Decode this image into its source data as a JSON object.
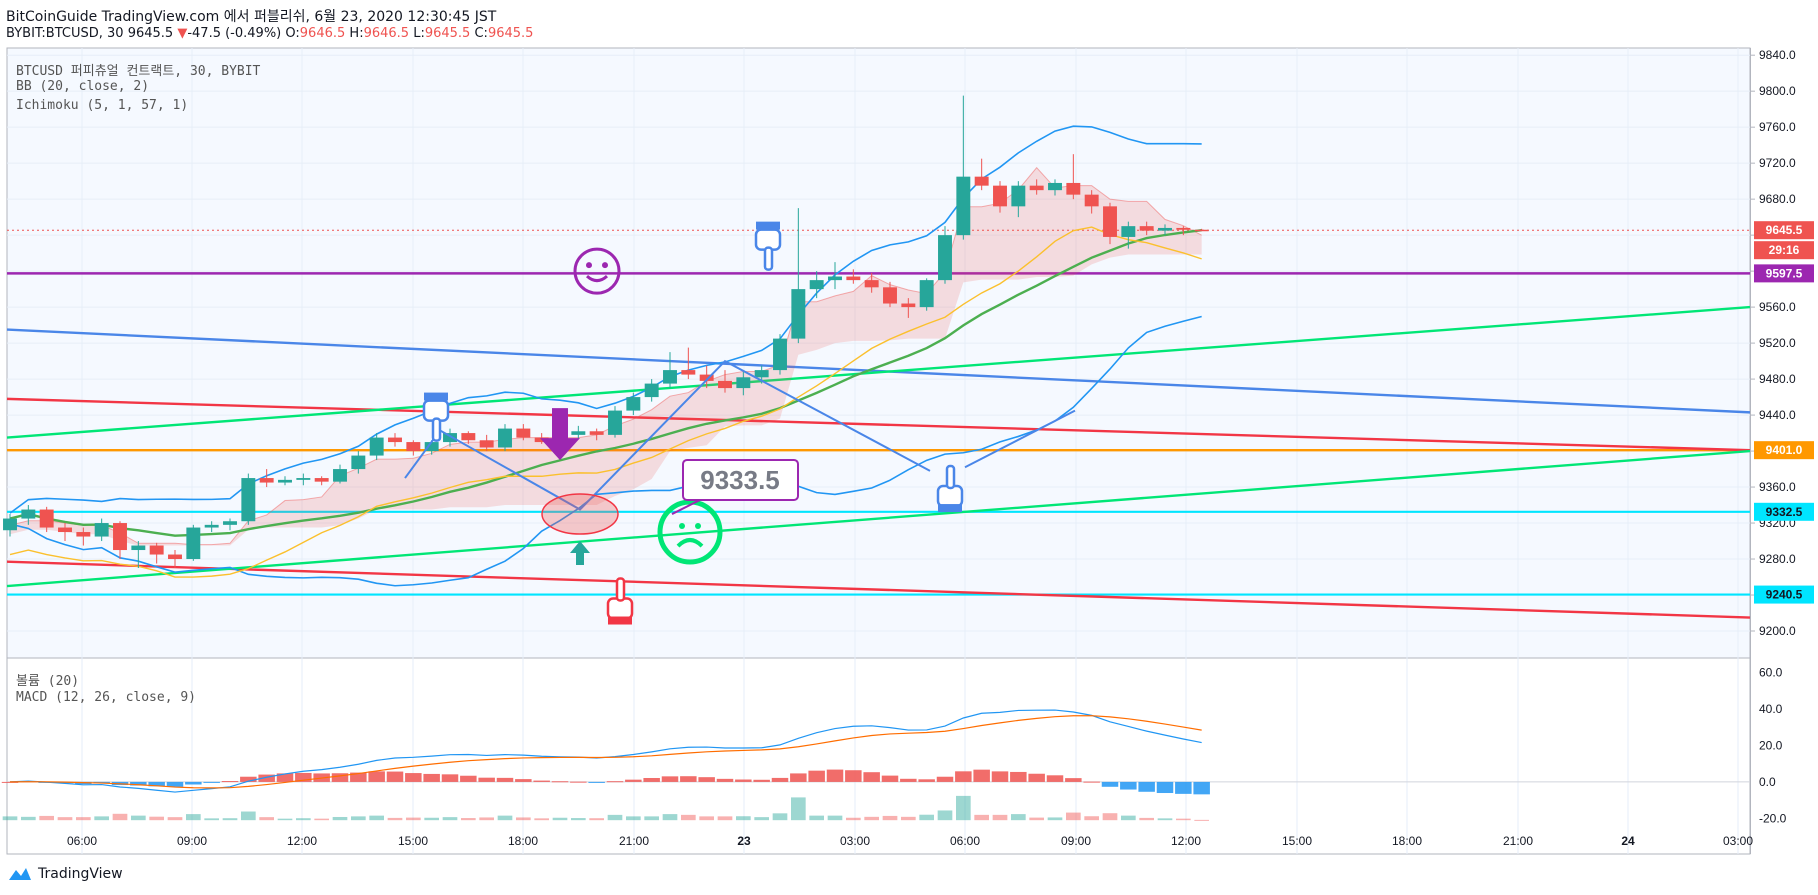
{
  "header": {
    "line1": "BitCoinGuide TradingView.com 에서 퍼블리쉬, 6월 23, 2020 12:30:45 JST",
    "symbol": "BYBIT:BTCUSD, 30",
    "last": "9645.5",
    "change": "-47.5 (-0.49%)",
    "o_label": "O:",
    "o": "9646.5",
    "h_label": "H:",
    "h": "9646.5",
    "l_label": "L:",
    "l": "9645.5",
    "c_label": "C:",
    "c": "9645.5"
  },
  "legends": {
    "main": "BTCUSD 퍼피츄얼 컨트랙트, 30, BYBIT",
    "bb": "BB (20, close, 2)",
    "ichimoku": "Ichimoku (5, 1, 57, 1)",
    "volume": "볼륨 (20)",
    "macd": "MACD (12, 26, close, 9)"
  },
  "footer": {
    "brand": "TradingView"
  },
  "annotations": {
    "callout": "9333.5"
  },
  "price_labels": {
    "current": "9645.5",
    "countdown": "29:16",
    "purple": "9597.5",
    "orange": "9401.0",
    "cyan1": "9332.5",
    "cyan2": "9240.5"
  },
  "colors": {
    "up": "#26a69a",
    "down": "#ef5350",
    "bb": "#2196f3",
    "ma": "#4caf50",
    "lagging": "#fbc02d",
    "purple": "#9c27b0",
    "orange": "#ff9800",
    "cyan": "#00e5ff",
    "green_line": "#00e676",
    "red_line": "#f23645",
    "blue_line": "#4a86e8"
  },
  "chart_data": [
    {
      "type": "candlestick",
      "name": "BTCUSD",
      "y_ticks": [
        "9840.0",
        "9800.0",
        "9760.0",
        "9720.0",
        "9680.0",
        "9640.0",
        "9600.0",
        "9560.0",
        "9520.0",
        "9480.0",
        "9440.0",
        "9400.0",
        "9360.0",
        "9320.0",
        "9280.0",
        "9240.0",
        "9200.0"
      ],
      "x_ticks": [
        "06:00",
        "09:00",
        "12:00",
        "15:00",
        "18:00",
        "21:00",
        "23",
        "03:00",
        "06:00",
        "09:00",
        "12:00",
        "15:00",
        "18:00",
        "21:00",
        "24",
        "03:00"
      ],
      "ylim": [
        9170,
        9848
      ],
      "candles": [
        [
          9312,
          9330,
          9305,
          9325
        ],
        [
          9325,
          9340,
          9318,
          9335
        ],
        [
          9335,
          9338,
          9310,
          9315
        ],
        [
          9315,
          9320,
          9300,
          9310
        ],
        [
          9310,
          9315,
          9295,
          9305
        ],
        [
          9305,
          9325,
          9300,
          9320
        ],
        [
          9320,
          9322,
          9280,
          9290
        ],
        [
          9290,
          9300,
          9270,
          9295
        ],
        [
          9295,
          9298,
          9275,
          9285
        ],
        [
          9285,
          9290,
          9270,
          9280
        ],
        [
          9280,
          9318,
          9278,
          9315
        ],
        [
          9315,
          9322,
          9310,
          9318
        ],
        [
          9318,
          9325,
          9312,
          9322
        ],
        [
          9322,
          9375,
          9318,
          9370
        ],
        [
          9370,
          9380,
          9360,
          9365
        ],
        [
          9365,
          9372,
          9362,
          9368
        ],
        [
          9368,
          9375,
          9362,
          9370
        ],
        [
          9370,
          9372,
          9362,
          9366
        ],
        [
          9366,
          9385,
          9364,
          9380
        ],
        [
          9380,
          9400,
          9375,
          9395
        ],
        [
          9395,
          9420,
          9390,
          9415
        ],
        [
          9415,
          9420,
          9405,
          9410
        ],
        [
          9410,
          9412,
          9395,
          9400
        ],
        [
          9400,
          9412,
          9396,
          9410
        ],
        [
          9410,
          9425,
          9405,
          9420
        ],
        [
          9420,
          9422,
          9408,
          9412
        ],
        [
          9412,
          9418,
          9400,
          9404
        ],
        [
          9404,
          9430,
          9400,
          9425
        ],
        [
          9425,
          9430,
          9412,
          9415
        ],
        [
          9415,
          9420,
          9408,
          9410
        ],
        [
          9410,
          9422,
          9406,
          9418
        ],
        [
          9418,
          9428,
          9414,
          9422
        ],
        [
          9422,
          9425,
          9412,
          9418
        ],
        [
          9418,
          9450,
          9415,
          9445
        ],
        [
          9445,
          9465,
          9440,
          9460
        ],
        [
          9460,
          9480,
          9455,
          9475
        ],
        [
          9475,
          9510,
          9470,
          9490
        ],
        [
          9490,
          9515,
          9480,
          9485
        ],
        [
          9485,
          9495,
          9470,
          9478
        ],
        [
          9478,
          9490,
          9465,
          9470
        ],
        [
          9470,
          9488,
          9462,
          9482
        ],
        [
          9482,
          9495,
          9475,
          9490
        ],
        [
          9490,
          9530,
          9485,
          9525
        ],
        [
          9525,
          9670,
          9520,
          9580
        ],
        [
          9580,
          9600,
          9570,
          9590
        ],
        [
          9590,
          9610,
          9580,
          9594
        ],
        [
          9594,
          9602,
          9586,
          9590
        ],
        [
          9590,
          9598,
          9576,
          9582
        ],
        [
          9582,
          9588,
          9560,
          9564
        ],
        [
          9564,
          9570,
          9548,
          9560
        ],
        [
          9560,
          9592,
          9556,
          9590
        ],
        [
          9590,
          9650,
          9586,
          9640
        ],
        [
          9640,
          9795,
          9635,
          9705
        ],
        [
          9705,
          9725,
          9690,
          9695
        ],
        [
          9695,
          9700,
          9665,
          9672
        ],
        [
          9672,
          9700,
          9660,
          9695
        ],
        [
          9695,
          9702,
          9685,
          9690
        ],
        [
          9690,
          9702,
          9684,
          9698
        ],
        [
          9698,
          9730,
          9680,
          9685
        ],
        [
          9685,
          9690,
          9664,
          9672
        ],
        [
          9672,
          9676,
          9630,
          9638
        ],
        [
          9638,
          9655,
          9625,
          9650
        ],
        [
          9650,
          9655,
          9640,
          9645
        ],
        [
          9645,
          9652,
          9640,
          9648
        ],
        [
          9648,
          9650,
          9640,
          9646
        ],
        [
          9646,
          9647,
          9645,
          9645
        ]
      ]
    },
    {
      "type": "bar",
      "name": "Volume / MACD histogram",
      "y_ticks": [
        "60.0",
        "40.0",
        "20.0",
        "0.0",
        "-20.0"
      ],
      "ylim": [
        -22,
        68
      ]
    }
  ]
}
